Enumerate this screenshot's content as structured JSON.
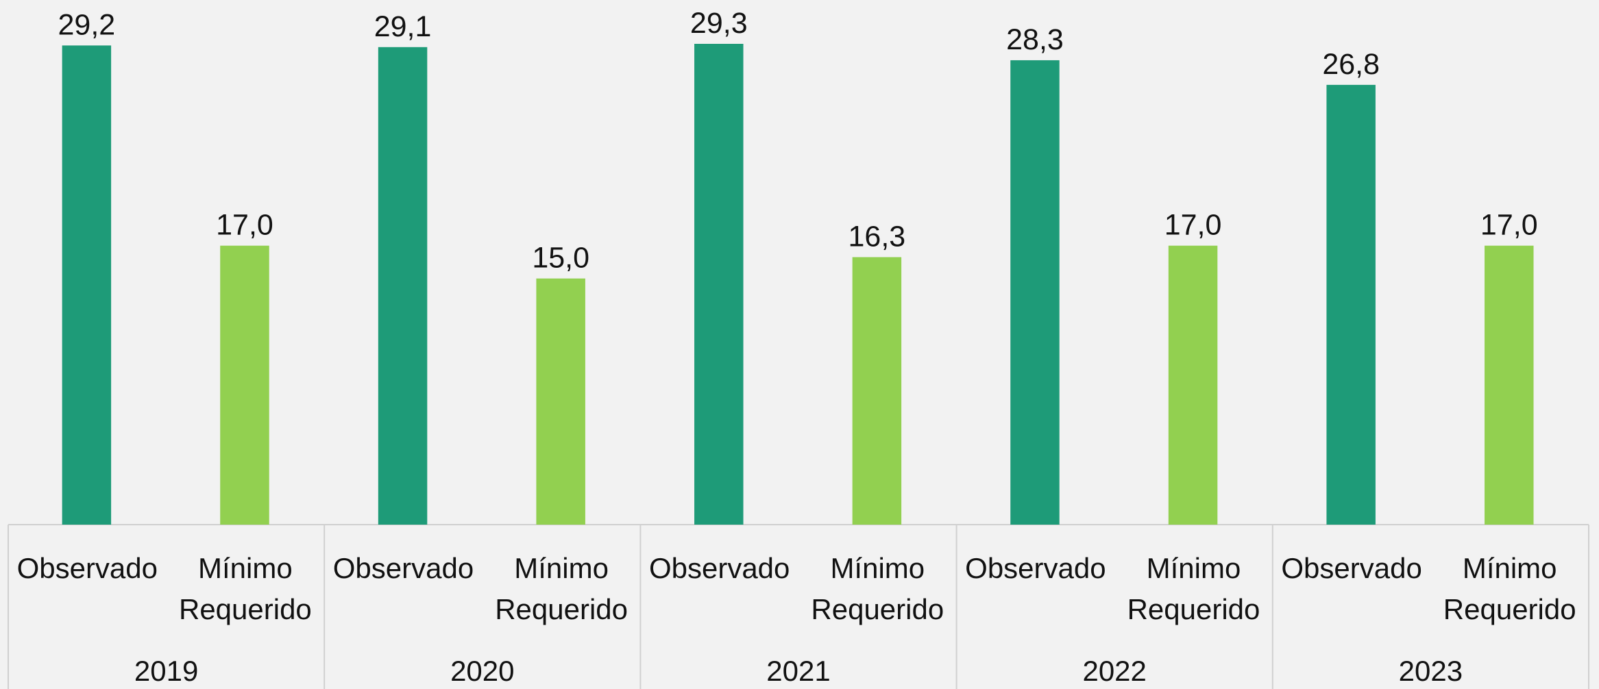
{
  "chart_data": {
    "type": "bar",
    "groups": [
      "2019",
      "2020",
      "2021",
      "2022",
      "2023"
    ],
    "series": [
      {
        "name": "Observado",
        "color": "#1e9b78",
        "values": [
          29.2,
          29.1,
          29.3,
          28.3,
          26.8
        ],
        "value_labels": [
          "29,2",
          "29,1",
          "29,3",
          "28,3",
          "26,8"
        ]
      },
      {
        "name": "Mínimo Requerido",
        "color": "#92d050",
        "values": [
          17.0,
          15.0,
          16.3,
          17.0,
          17.0
        ],
        "value_labels": [
          "17,0",
          "15,0",
          "16,3",
          "17,0",
          "17,0"
        ]
      }
    ]
  }
}
